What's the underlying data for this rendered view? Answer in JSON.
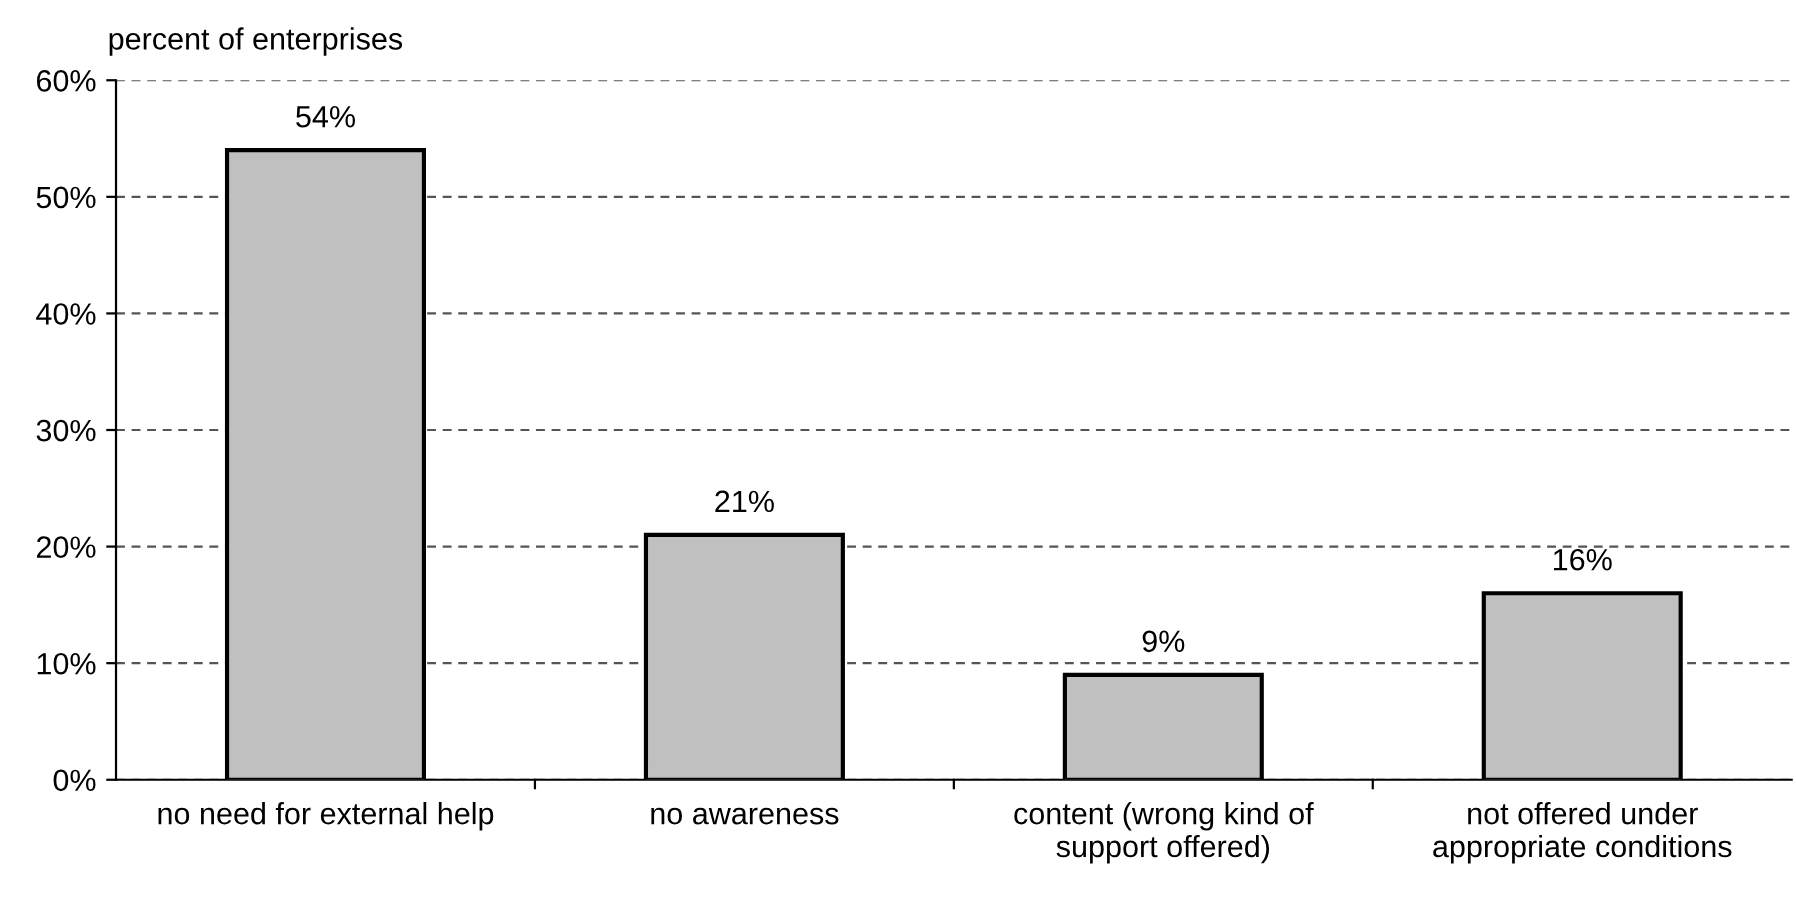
{
  "chart_data": {
    "type": "bar",
    "ylabel": "percent of enterprises",
    "categories": [
      "no need for external help",
      "no awareness",
      "content (wrong kind of\nsupport offered)",
      "not offered under\nappropriate conditions"
    ],
    "values": [
      54,
      21,
      9,
      16
    ],
    "value_labels": [
      "54%",
      "21%",
      "9%",
      "16%"
    ],
    "color": "#c0c0c0",
    "ylim": [
      0,
      60
    ],
    "yticks": [
      {
        "value": 0,
        "label": "0%"
      },
      {
        "value": 10,
        "label": "10%"
      },
      {
        "value": 20,
        "label": "20%"
      },
      {
        "value": 30,
        "label": "30%"
      },
      {
        "value": 40,
        "label": "40%"
      },
      {
        "value": 50,
        "label": "50%"
      },
      {
        "value": 60,
        "label": "60%"
      }
    ],
    "grid": "y"
  }
}
